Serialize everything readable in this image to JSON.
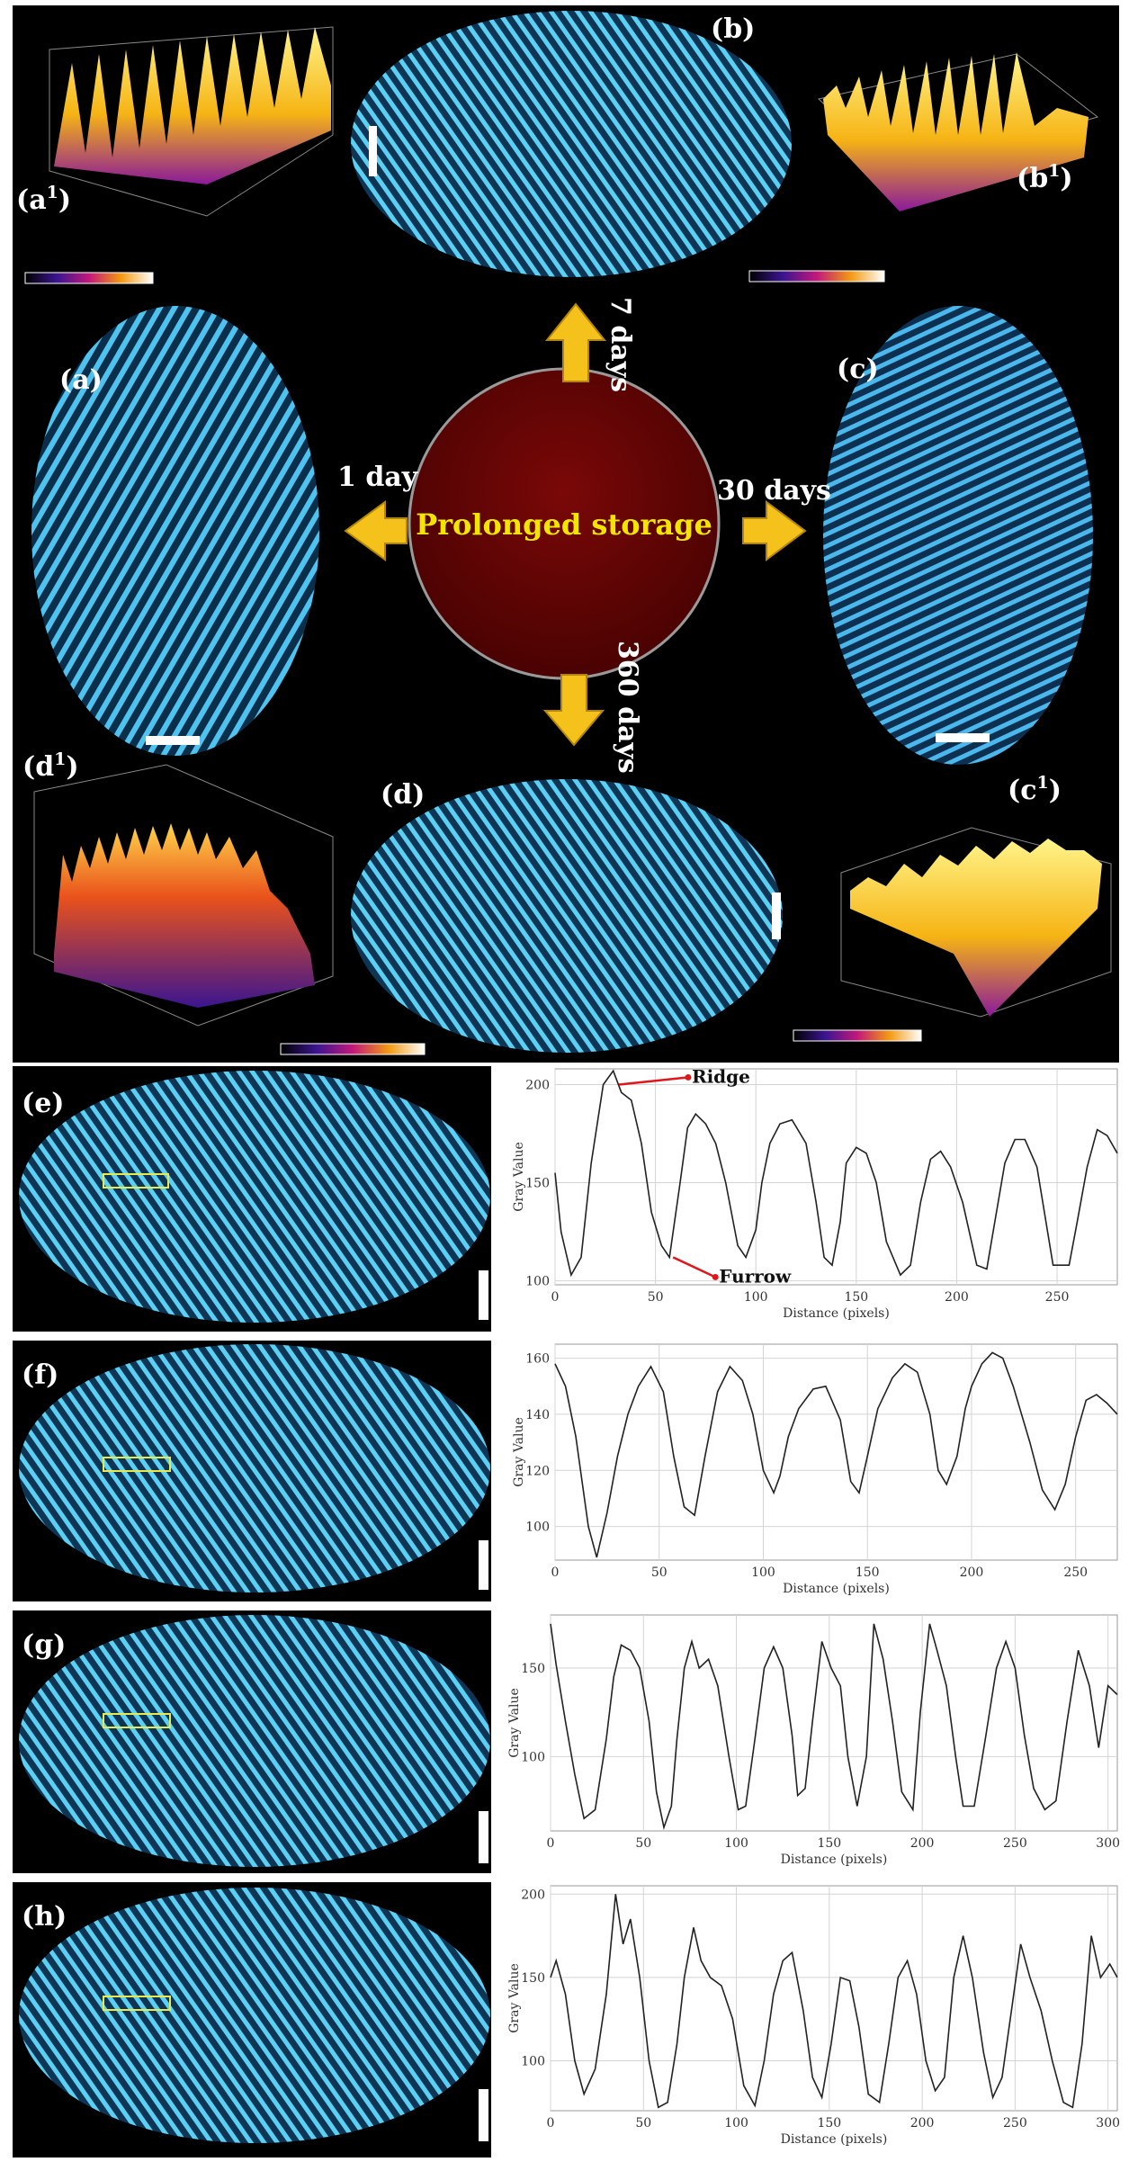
{
  "labels": {
    "a": "(a)",
    "b": "(b)",
    "c": "(c)",
    "d": "(d)",
    "a1": "(a",
    "b1": "(b",
    "c1": "(c",
    "d1": "(d",
    "sup": "1",
    "close": ")",
    "e": "(e)",
    "f": "(f)",
    "g": "(g)",
    "h": "(h)"
  },
  "center": {
    "text": "Prolonged storage"
  },
  "arrows": {
    "left": "1 day",
    "top": "7 days",
    "right": "30 days",
    "bottom": "360 days"
  },
  "colors": {
    "center_fill": "#6b0505",
    "center_text": "#f2e600",
    "arrow": "#f5c21b",
    "fingerprint_glow": "#4fc3f0",
    "panel_bg": "#000000"
  },
  "profile_axes": {
    "xlabel": "Distance (pixels)",
    "ylabel": "Gray Value"
  },
  "annotations": {
    "ridge": "Ridge",
    "furrow": "Furrow"
  },
  "chart_data": [
    {
      "type": "line",
      "panel": "(e)",
      "xlabel": "Distance (pixels)",
      "ylabel": "Gray Value",
      "xlim": [
        0,
        280
      ],
      "ylim": [
        98,
        208
      ],
      "xticks": [
        0,
        50,
        100,
        150,
        200,
        250
      ],
      "yticks": [
        100,
        150,
        200
      ],
      "x": [
        0,
        3,
        8,
        13,
        18,
        24,
        29,
        33,
        38,
        43,
        48,
        53,
        57,
        62,
        66,
        70,
        75,
        80,
        85,
        91,
        95,
        100,
        103,
        107,
        112,
        118,
        125,
        130,
        134,
        138,
        142,
        145,
        150,
        155,
        160,
        165,
        172,
        177,
        182,
        187,
        192,
        197,
        203,
        210,
        215,
        219,
        224,
        229,
        234,
        240,
        248,
        256,
        260,
        265,
        270,
        275,
        280
      ],
      "y": [
        155,
        125,
        103,
        112,
        160,
        200,
        207,
        196,
        192,
        170,
        135,
        118,
        112,
        148,
        178,
        185,
        180,
        170,
        150,
        118,
        112,
        126,
        150,
        170,
        180,
        182,
        170,
        140,
        112,
        108,
        130,
        160,
        168,
        165,
        150,
        120,
        103,
        108,
        140,
        162,
        166,
        158,
        140,
        108,
        106,
        130,
        160,
        172,
        172,
        158,
        108,
        108,
        130,
        158,
        177,
        174,
        165
      ],
      "annotations": [
        {
          "text": "Ridge",
          "x": 30,
          "y": 200
        },
        {
          "text": "Furrow",
          "x": 57,
          "y": 112
        }
      ]
    },
    {
      "type": "line",
      "panel": "(f)",
      "xlabel": "Distance (pixels)",
      "ylabel": "Gray Value",
      "xlim": [
        0,
        270
      ],
      "ylim": [
        88,
        165
      ],
      "xticks": [
        0,
        50,
        100,
        150,
        200,
        250
      ],
      "yticks": [
        100,
        120,
        140,
        160
      ],
      "x": [
        0,
        5,
        10,
        16,
        20,
        25,
        30,
        35,
        40,
        46,
        52,
        57,
        62,
        67,
        72,
        78,
        84,
        90,
        95,
        100,
        105,
        108,
        112,
        117,
        124,
        130,
        137,
        142,
        146,
        150,
        155,
        162,
        168,
        174,
        180,
        184,
        188,
        193,
        197,
        200,
        205,
        210,
        215,
        220,
        228,
        234,
        240,
        245,
        250,
        255,
        260,
        265,
        270
      ],
      "y": [
        158,
        150,
        132,
        100,
        89,
        105,
        125,
        140,
        150,
        157,
        148,
        125,
        107,
        104,
        125,
        148,
        157,
        152,
        140,
        120,
        112,
        118,
        132,
        142,
        149,
        150,
        138,
        116,
        112,
        125,
        142,
        153,
        158,
        155,
        140,
        120,
        115,
        125,
        142,
        150,
        158,
        162,
        160,
        150,
        130,
        113,
        106,
        115,
        132,
        145,
        147,
        144,
        140
      ],
      "annotations": []
    },
    {
      "type": "line",
      "panel": "(g)",
      "xlabel": "Distance (pixels)",
      "ylabel": "Gray Value",
      "xlim": [
        0,
        305
      ],
      "ylim": [
        58,
        180
      ],
      "xticks": [
        0,
        50,
        100,
        150,
        200,
        250,
        300
      ],
      "yticks": [
        100,
        150
      ],
      "x": [
        0,
        3,
        8,
        13,
        18,
        24,
        30,
        34,
        38,
        43,
        48,
        53,
        57,
        61,
        65,
        68,
        72,
        76,
        80,
        85,
        90,
        96,
        101,
        105,
        110,
        115,
        120,
        125,
        130,
        133,
        137,
        141,
        146,
        151,
        156,
        160,
        165,
        170,
        174,
        179,
        184,
        189,
        195,
        199,
        204,
        208,
        213,
        218,
        222,
        228,
        234,
        240,
        245,
        250,
        255,
        260,
        266,
        272,
        278,
        284,
        290,
        295,
        300,
        305
      ],
      "y": [
        175,
        152,
        120,
        90,
        65,
        70,
        110,
        145,
        163,
        160,
        150,
        120,
        80,
        60,
        72,
        110,
        150,
        165,
        150,
        155,
        140,
        100,
        70,
        72,
        110,
        150,
        162,
        150,
        112,
        78,
        82,
        120,
        165,
        150,
        140,
        100,
        72,
        100,
        175,
        155,
        120,
        80,
        70,
        125,
        175,
        160,
        140,
        100,
        72,
        72,
        110,
        150,
        165,
        150,
        112,
        82,
        70,
        75,
        120,
        160,
        140,
        105,
        140,
        135
      ],
      "annotations": []
    },
    {
      "type": "line",
      "panel": "(h)",
      "xlabel": "Distance (pixels)",
      "ylabel": "Gray Value",
      "xlim": [
        0,
        305
      ],
      "ylim": [
        70,
        205
      ],
      "xticks": [
        0,
        50,
        100,
        150,
        200,
        250,
        300
      ],
      "yticks": [
        100,
        150,
        200
      ],
      "x": [
        0,
        3,
        8,
        13,
        18,
        24,
        30,
        35,
        39,
        43,
        48,
        53,
        58,
        63,
        68,
        72,
        77,
        81,
        86,
        92,
        98,
        104,
        110,
        115,
        120,
        125,
        130,
        136,
        141,
        146,
        151,
        156,
        161,
        166,
        171,
        177,
        182,
        187,
        192,
        197,
        202,
        207,
        212,
        217,
        222,
        227,
        233,
        238,
        243,
        248,
        253,
        258,
        264,
        270,
        276,
        281,
        286,
        291,
        296,
        301,
        305
      ],
      "y": [
        150,
        160,
        140,
        100,
        80,
        95,
        140,
        200,
        170,
        185,
        150,
        100,
        72,
        75,
        110,
        150,
        180,
        160,
        150,
        145,
        125,
        85,
        73,
        100,
        140,
        160,
        165,
        130,
        90,
        78,
        110,
        150,
        148,
        120,
        80,
        75,
        110,
        150,
        160,
        140,
        100,
        82,
        90,
        150,
        175,
        150,
        105,
        78,
        90,
        130,
        170,
        150,
        130,
        100,
        75,
        72,
        110,
        175,
        150,
        158,
        150
      ],
      "annotations": []
    }
  ]
}
